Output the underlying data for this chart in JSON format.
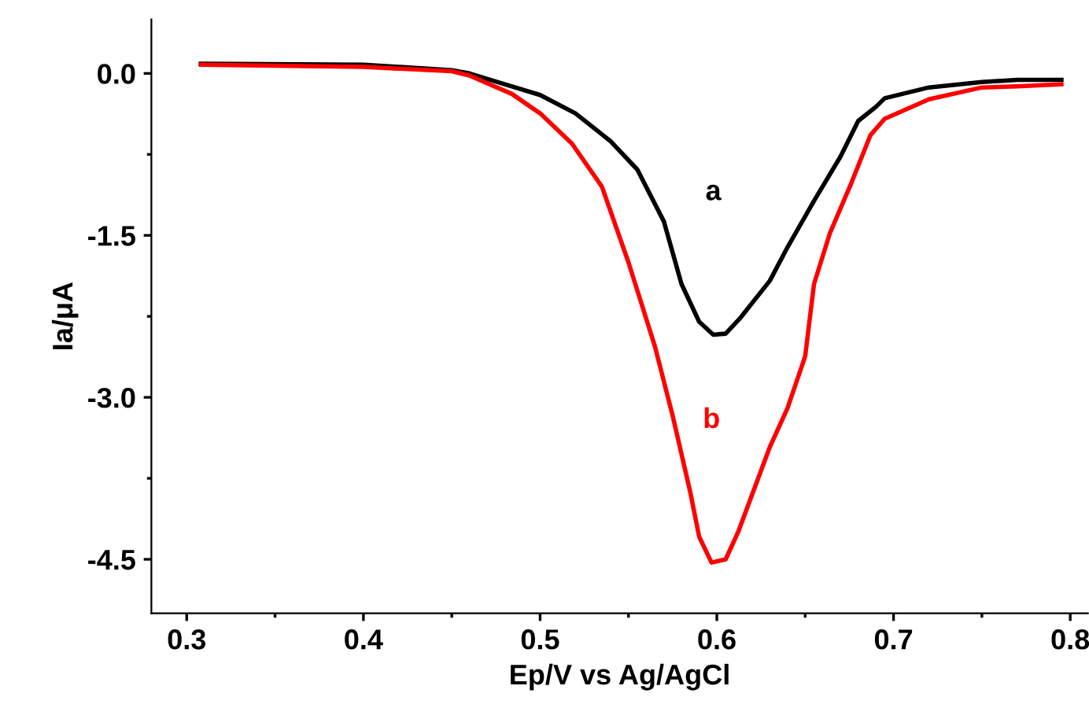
{
  "chart_data": {
    "type": "line",
    "xlabel": "Ep/V vs Ag/AgCl",
    "ylabel": "Ia/μA",
    "xlim": [
      0.28,
      0.81
    ],
    "ylim": [
      -5.0,
      0.5
    ],
    "xticks": [
      0.3,
      0.4,
      0.5,
      0.6,
      0.7,
      0.8
    ],
    "yticks": [
      {
        "value": 0.0,
        "label": "0.0"
      },
      {
        "value": -1.5,
        "label": "-1.5"
      },
      {
        "value": -3.0,
        "label": "-3.0"
      },
      {
        "value": -4.5,
        "label": "-4.5"
      }
    ],
    "grid": false,
    "marker": "none",
    "line_style": "solid",
    "series": [
      {
        "name": "a",
        "color": "#000000",
        "x": [
          0.308,
          0.4,
          0.45,
          0.46,
          0.48,
          0.5,
          0.52,
          0.54,
          0.555,
          0.57,
          0.58,
          0.59,
          0.598,
          0.605,
          0.613,
          0.63,
          0.64,
          0.655,
          0.67,
          0.68,
          0.69,
          0.695,
          0.72,
          0.75,
          0.77,
          0.795
        ],
        "values": [
          0.09,
          0.08,
          0.03,
          0.0,
          -0.1,
          -0.2,
          -0.37,
          -0.63,
          -0.89,
          -1.37,
          -1.95,
          -2.3,
          -2.42,
          -2.41,
          -2.27,
          -1.92,
          -1.61,
          -1.18,
          -0.77,
          -0.44,
          -0.31,
          -0.23,
          -0.13,
          -0.08,
          -0.06,
          -0.06
        ]
      },
      {
        "name": "b",
        "color": "#ff0000",
        "x": [
          0.308,
          0.4,
          0.45,
          0.46,
          0.484,
          0.5,
          0.518,
          0.535,
          0.55,
          0.565,
          0.575,
          0.585,
          0.59,
          0.597,
          0.605,
          0.612,
          0.63,
          0.64,
          0.65,
          0.655,
          0.664,
          0.676,
          0.687,
          0.695,
          0.72,
          0.75,
          0.77,
          0.795
        ],
        "values": [
          0.08,
          0.06,
          0.02,
          -0.02,
          -0.19,
          -0.37,
          -0.65,
          -1.05,
          -1.75,
          -2.53,
          -3.17,
          -3.88,
          -4.29,
          -4.53,
          -4.5,
          -4.25,
          -3.46,
          -3.1,
          -2.62,
          -1.95,
          -1.48,
          -1.02,
          -0.57,
          -0.42,
          -0.24,
          -0.13,
          -0.12,
          -0.1
        ]
      }
    ]
  }
}
